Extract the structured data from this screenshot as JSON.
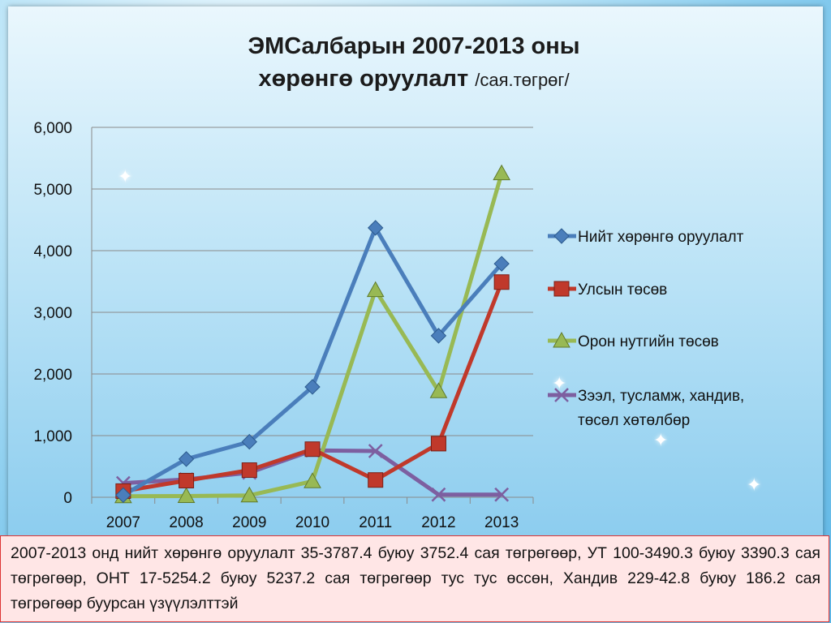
{
  "title_line1": "ЭМСалбарын 2007-2013 оны",
  "title_line2": "хөрөнгө оруулалт",
  "title_unit": "/сая.төгрөг/",
  "note_text": "2007-2013 онд нийт хөрөнгө оруулалт 35-3787.4  буюу 3752.4 сая төгрөгөөр, УТ 100-3490.3 буюу 3390.3 сая төгрөгөөр, ОНТ 17-5254.2 буюу 5237.2 сая төгрөгөөр тус тус өссөн, Хандив 229-42.8 буюу 186.2 сая төгрөгөөр  буурсан үзүүлэлттэй",
  "chart_data": {
    "type": "line",
    "categories": [
      "2007",
      "2008",
      "2009",
      "2010",
      "2011",
      "2012",
      "2013"
    ],
    "ylim": [
      0,
      6000
    ],
    "yticks": [
      "0",
      "1,000",
      "2,000",
      "3,000",
      "4,000",
      "5,000",
      "6,000"
    ],
    "grid": true,
    "legend_position": "right",
    "series": [
      {
        "name": "Нийт  хөрөнгө оруулалт",
        "color": "#4a7ebb",
        "marker": "diamond",
        "values": [
          35,
          620,
          900,
          1790,
          4370,
          2620,
          3787.4
        ]
      },
      {
        "name": "Улсын төсөв",
        "color": "#c0392b",
        "marker": "square",
        "values": [
          100,
          270,
          440,
          780,
          280,
          870,
          3490.3
        ]
      },
      {
        "name": "Орон нутгийн төсөв",
        "color": "#98b954",
        "marker": "triangle",
        "values": [
          17,
          20,
          30,
          260,
          3360,
          1720,
          5254.2
        ]
      },
      {
        "name": "Зээл, тусламж, хандив, төсөл хөтөлбөр",
        "color": "#7d5fa0",
        "marker": "x",
        "values": [
          229,
          290,
          400,
          760,
          750,
          42.8,
          42.8
        ]
      }
    ]
  }
}
